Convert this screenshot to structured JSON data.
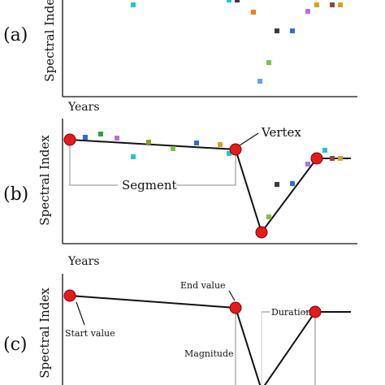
{
  "panels": {
    "a": {
      "label": "(a)",
      "ylabel": "Spectral Index",
      "xlabel": "Years"
    },
    "b": {
      "label": "(b)",
      "ylabel": "Spectral Index",
      "xlabel": "Years",
      "annotations": {
        "vertex": "Vertex",
        "segment": "Segment"
      }
    },
    "c": {
      "label": "(c)",
      "ylabel": "Spectral Index",
      "annotations": {
        "end_value": "End value",
        "start_value": "Start value",
        "duration": "Duration",
        "magnitude": "Magnitude"
      }
    }
  },
  "colors": {
    "axis": "#111111",
    "vertex_fill": "#e41a1c",
    "vertex_stroke": "#7a0000",
    "guide": "#888888",
    "cyan": "#22c4d4",
    "blue": "#2d6fd6",
    "green": "#2e9e48",
    "olive": "#8c9a1e",
    "lime": "#7fc23c",
    "grey": "#3a3a3a",
    "purple": "#b86fd9",
    "orange": "#f27c1f",
    "gold": "#d8a31a",
    "brown": "#8b4a3a",
    "lightblue": "#5aa6de"
  }
}
